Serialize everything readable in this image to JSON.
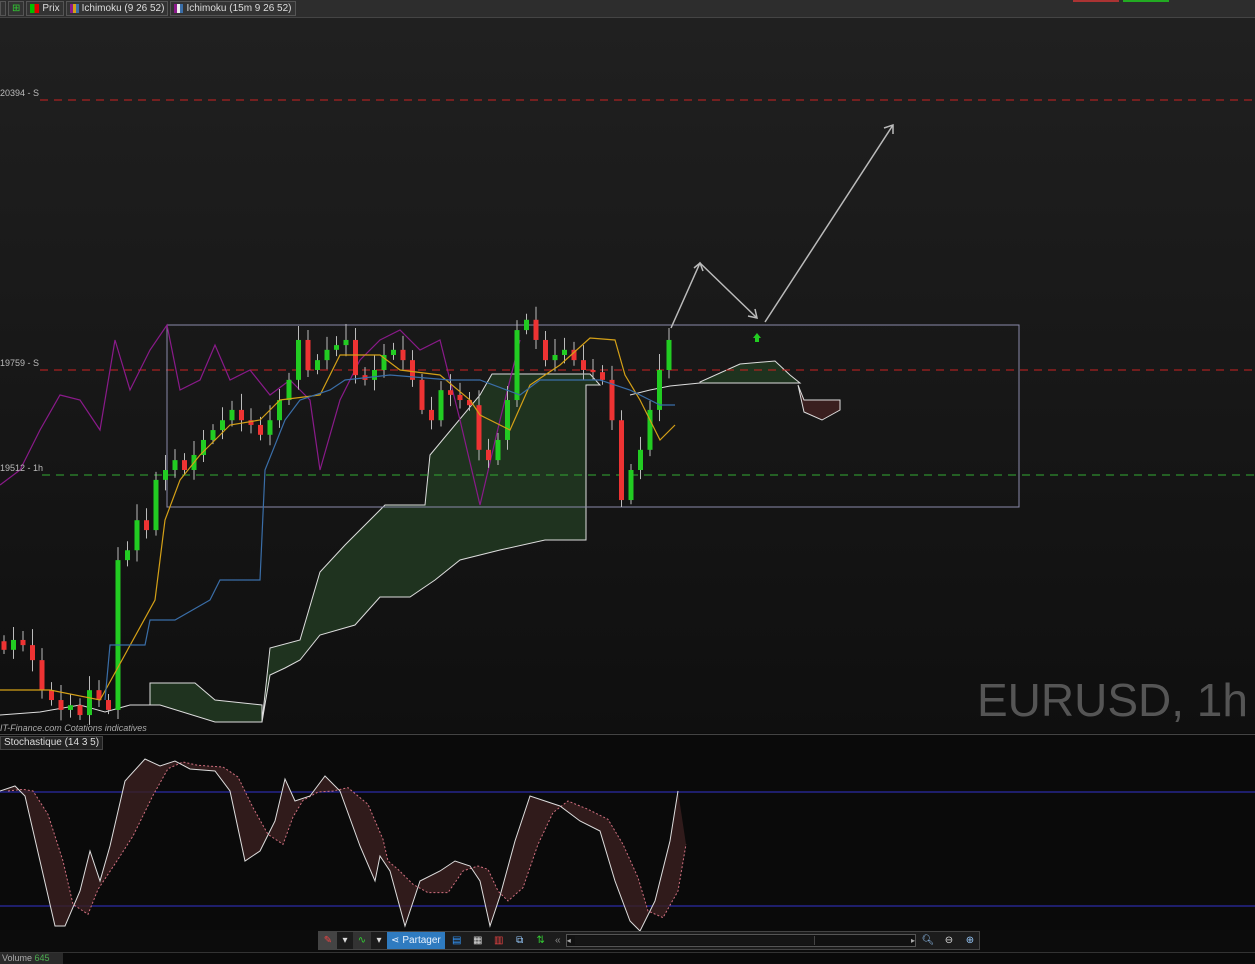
{
  "legend": {
    "items": [
      {
        "label": "Prix",
        "colors": [
          "#e00000",
          "#00c000"
        ]
      },
      {
        "label": "Ichimoku (9 26 52)",
        "colors": [
          "#8a1a8a",
          "#d4a017",
          "#3a6ea8",
          "#eeeeee"
        ]
      },
      {
        "label": "Ichimoku (15m 9 26 52)",
        "colors": [
          "#8a1a8a",
          "#eeeeee",
          "#d4a017",
          "#3a6ea8"
        ]
      }
    ]
  },
  "levels": [
    {
      "label": "20394 - S",
      "price": 1.20394,
      "color": "#cc2222"
    },
    {
      "label": "19759 - S",
      "price": 1.19759,
      "color": "#cc2222"
    },
    {
      "label": "19512 - 1h",
      "price": 1.19512,
      "color": "#33aa33"
    }
  ],
  "watermark": "EURUSD, 1h",
  "source_text": "IT-Finance.com Cotations indicatives",
  "stochastic": {
    "label": "Stochastique (14 3 5)",
    "upper": 80,
    "lower": 20
  },
  "colors": {
    "bull": "#22cc22",
    "bear": "#ee3333",
    "tenkan": "#d4a017",
    "kijun": "#3a6ea8",
    "chikou": "#8a1a8a",
    "cloud_bull": "#1f3a20",
    "cloud_bear": "#3a1f1f"
  },
  "chart_data": {
    "type": "candlestick",
    "symbol": "EURUSD",
    "timeframe": "1h",
    "closes": [
      1.19107,
      1.1913,
      1.19118,
      1.19083,
      1.19013,
      1.1899,
      1.18967,
      1.18978,
      1.18955,
      1.19013,
      1.1899,
      1.18967,
      1.19316,
      1.19339,
      1.19409,
      1.19386,
      1.19503,
      1.19526,
      1.19549,
      1.19526,
      1.19561,
      1.19596,
      1.19619,
      1.19642,
      1.19666,
      1.19642,
      1.19631,
      1.19608,
      1.19642,
      1.19689,
      1.19736,
      1.19829,
      1.19759,
      1.19782,
      1.19806,
      1.19817,
      1.19829,
      1.19747,
      1.19736,
      1.19759,
      1.19794,
      1.19806,
      1.19782,
      1.19736,
      1.19666,
      1.19642,
      1.19712,
      1.19701,
      1.19689,
      1.19677,
      1.19573,
      1.19549,
      1.19596,
      1.19689,
      1.19852,
      1.19876,
      1.19829,
      1.19782,
      1.19794,
      1.19806,
      1.19782,
      1.19759,
      1.19754,
      1.19736,
      1.19642,
      1.19456,
      1.19526,
      1.19573,
      1.19666,
      1.19759,
      1.19829
    ]
  },
  "toolbar": {
    "share_label": "Partager",
    "icons": [
      "drawing-tools-icon",
      "indicators-icon",
      "share-icon",
      "comment-icon",
      "report-icon",
      "candles-icon",
      "windows-icon",
      "trade-icon"
    ]
  },
  "volume": {
    "label": "Volume",
    "value": "645"
  }
}
